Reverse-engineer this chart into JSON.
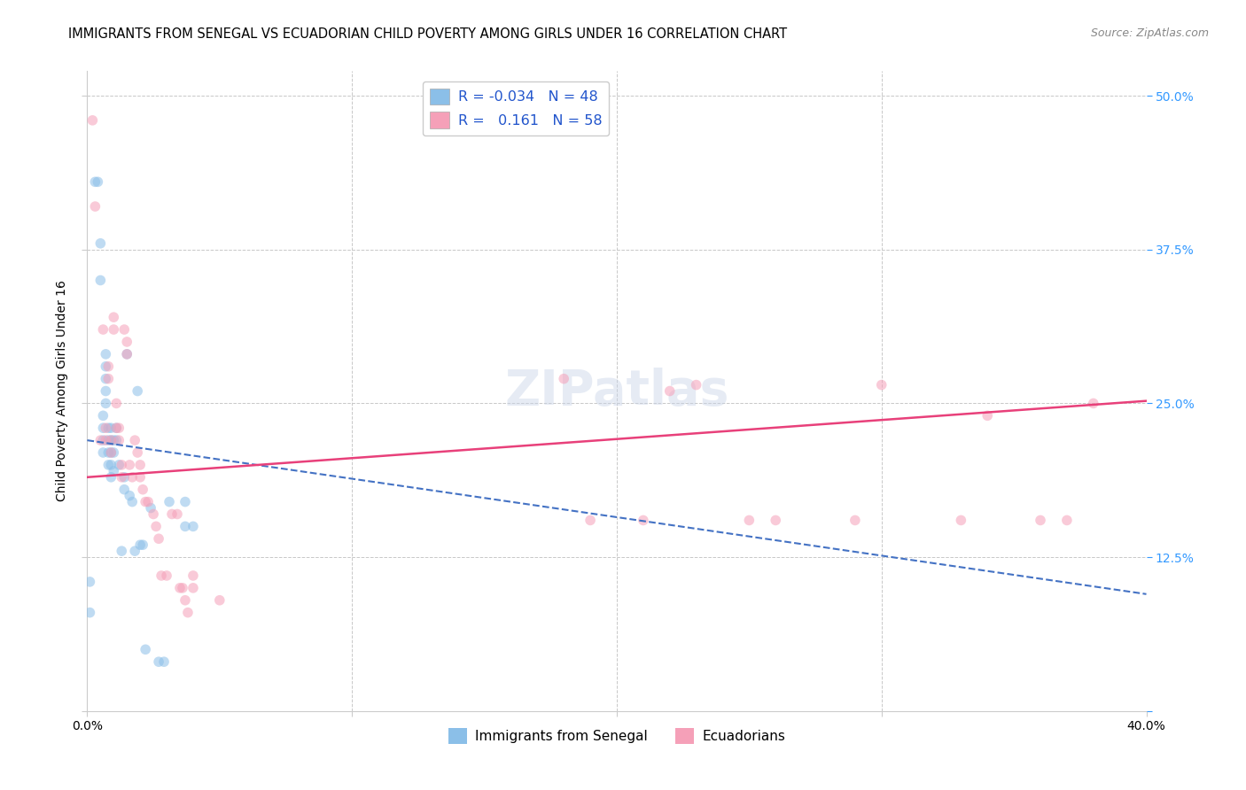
{
  "title": "IMMIGRANTS FROM SENEGAL VS ECUADORIAN CHILD POVERTY AMONG GIRLS UNDER 16 CORRELATION CHART",
  "source": "Source: ZipAtlas.com",
  "xlim": [
    0.0,
    0.4
  ],
  "ylim": [
    0.0,
    0.52
  ],
  "ytick_positions": [
    0.0,
    0.125,
    0.25,
    0.375,
    0.5
  ],
  "ytick_labels_right": [
    "",
    "12.5%",
    "25.0%",
    "37.5%",
    "50.0%"
  ],
  "xtick_positions": [
    0.0,
    0.1,
    0.2,
    0.3,
    0.4
  ],
  "xtick_labels": [
    "0.0%",
    "",
    "",
    "",
    "40.0%"
  ],
  "watermark": "ZIPatlas",
  "blue_scatter_x": [
    0.001,
    0.001,
    0.003,
    0.004,
    0.005,
    0.005,
    0.006,
    0.006,
    0.006,
    0.006,
    0.007,
    0.007,
    0.007,
    0.007,
    0.007,
    0.008,
    0.008,
    0.008,
    0.008,
    0.009,
    0.009,
    0.009,
    0.009,
    0.009,
    0.01,
    0.01,
    0.01,
    0.011,
    0.011,
    0.012,
    0.013,
    0.014,
    0.014,
    0.015,
    0.016,
    0.017,
    0.018,
    0.019,
    0.02,
    0.021,
    0.022,
    0.024,
    0.027,
    0.029,
    0.031,
    0.037,
    0.037,
    0.04
  ],
  "blue_scatter_y": [
    0.105,
    0.08,
    0.43,
    0.43,
    0.38,
    0.35,
    0.24,
    0.23,
    0.22,
    0.21,
    0.29,
    0.28,
    0.27,
    0.26,
    0.25,
    0.23,
    0.22,
    0.21,
    0.2,
    0.23,
    0.22,
    0.21,
    0.2,
    0.19,
    0.22,
    0.21,
    0.195,
    0.23,
    0.22,
    0.2,
    0.13,
    0.19,
    0.18,
    0.29,
    0.175,
    0.17,
    0.13,
    0.26,
    0.135,
    0.135,
    0.05,
    0.165,
    0.04,
    0.04,
    0.17,
    0.17,
    0.15,
    0.15
  ],
  "pink_scatter_x": [
    0.002,
    0.003,
    0.005,
    0.006,
    0.007,
    0.007,
    0.008,
    0.008,
    0.009,
    0.009,
    0.01,
    0.01,
    0.011,
    0.011,
    0.012,
    0.012,
    0.013,
    0.013,
    0.014,
    0.015,
    0.015,
    0.016,
    0.017,
    0.018,
    0.019,
    0.02,
    0.02,
    0.021,
    0.022,
    0.023,
    0.025,
    0.026,
    0.027,
    0.028,
    0.03,
    0.032,
    0.034,
    0.035,
    0.036,
    0.037,
    0.038,
    0.04,
    0.04,
    0.05,
    0.18,
    0.19,
    0.21,
    0.22,
    0.23,
    0.25,
    0.26,
    0.29,
    0.3,
    0.33,
    0.34,
    0.36,
    0.37,
    0.38
  ],
  "pink_scatter_y": [
    0.48,
    0.41,
    0.22,
    0.31,
    0.23,
    0.22,
    0.28,
    0.27,
    0.22,
    0.21,
    0.32,
    0.31,
    0.25,
    0.23,
    0.23,
    0.22,
    0.2,
    0.19,
    0.31,
    0.3,
    0.29,
    0.2,
    0.19,
    0.22,
    0.21,
    0.2,
    0.19,
    0.18,
    0.17,
    0.17,
    0.16,
    0.15,
    0.14,
    0.11,
    0.11,
    0.16,
    0.16,
    0.1,
    0.1,
    0.09,
    0.08,
    0.11,
    0.1,
    0.09,
    0.27,
    0.155,
    0.155,
    0.26,
    0.265,
    0.155,
    0.155,
    0.155,
    0.265,
    0.155,
    0.24,
    0.155,
    0.155,
    0.25
  ],
  "blue_trend_x0": 0.0,
  "blue_trend_x1": 0.4,
  "blue_trend_y0": 0.22,
  "blue_trend_y1": 0.095,
  "pink_trend_x0": 0.0,
  "pink_trend_x1": 0.4,
  "pink_trend_y0": 0.19,
  "pink_trend_y1": 0.252,
  "scatter_alpha": 0.55,
  "scatter_size": 70,
  "scatter_blue_color": "#8bbfe8",
  "scatter_pink_color": "#f5a0b8",
  "trend_blue_color": "#4472c4",
  "trend_pink_color": "#e8407a",
  "grid_color": "#c8c8c8",
  "grid_linestyle": "--",
  "background_color": "#ffffff",
  "title_fontsize": 10.5,
  "ylabel_fontsize": 10,
  "tick_fontsize": 10,
  "right_tick_color": "#3399ff",
  "watermark_fontsize": 40,
  "watermark_color": "#c8d4e8",
  "watermark_alpha": 0.45,
  "legend_box_blue": "#8bbfe8",
  "legend_box_pink": "#f5a0b8",
  "legend_text_color": "#2255cc",
  "legend_r1": "R = -0.034",
  "legend_n1": "N = 48",
  "legend_r2": "R =   0.161",
  "legend_n2": "N = 58",
  "bottom_legend_blue": "Immigrants from Senegal",
  "bottom_legend_pink": "Ecuadorians"
}
